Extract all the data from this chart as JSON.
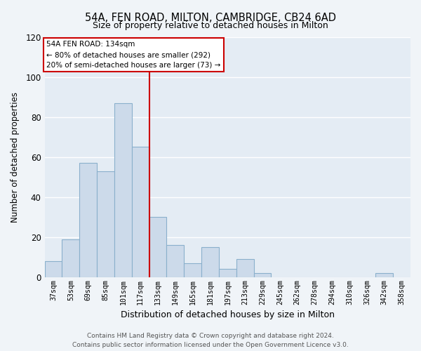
{
  "title": "54A, FEN ROAD, MILTON, CAMBRIDGE, CB24 6AD",
  "subtitle": "Size of property relative to detached houses in Milton",
  "xlabel": "Distribution of detached houses by size in Milton",
  "ylabel": "Number of detached properties",
  "bar_color": "#ccdaea",
  "bar_edge_color": "#8ab0cc",
  "background_color": "#f0f4f8",
  "categories": [
    "37sqm",
    "53sqm",
    "69sqm",
    "85sqm",
    "101sqm",
    "117sqm",
    "133sqm",
    "149sqm",
    "165sqm",
    "181sqm",
    "197sqm",
    "213sqm",
    "229sqm",
    "245sqm",
    "262sqm",
    "278sqm",
    "294sqm",
    "310sqm",
    "326sqm",
    "342sqm",
    "358sqm"
  ],
  "values": [
    8,
    19,
    57,
    53,
    87,
    65,
    30,
    16,
    7,
    15,
    4,
    9,
    2,
    0,
    0,
    0,
    0,
    0,
    0,
    2,
    0
  ],
  "ylim": [
    0,
    120
  ],
  "yticks": [
    0,
    20,
    40,
    60,
    80,
    100,
    120
  ],
  "vline_index": 6,
  "vline_color": "#cc0000",
  "annotation_line1": "54A FEN ROAD: 134sqm",
  "annotation_line2": "← 80% of detached houses are smaller (292)",
  "annotation_line3": "20% of semi-detached houses are larger (73) →",
  "annotation_box_color": "#ffffff",
  "annotation_box_edge": "#cc0000",
  "footer_text": "Contains HM Land Registry data © Crown copyright and database right 2024.\nContains public sector information licensed under the Open Government Licence v3.0.",
  "grid_color": "#ffffff",
  "plot_bg_color": "#e4ecf4"
}
